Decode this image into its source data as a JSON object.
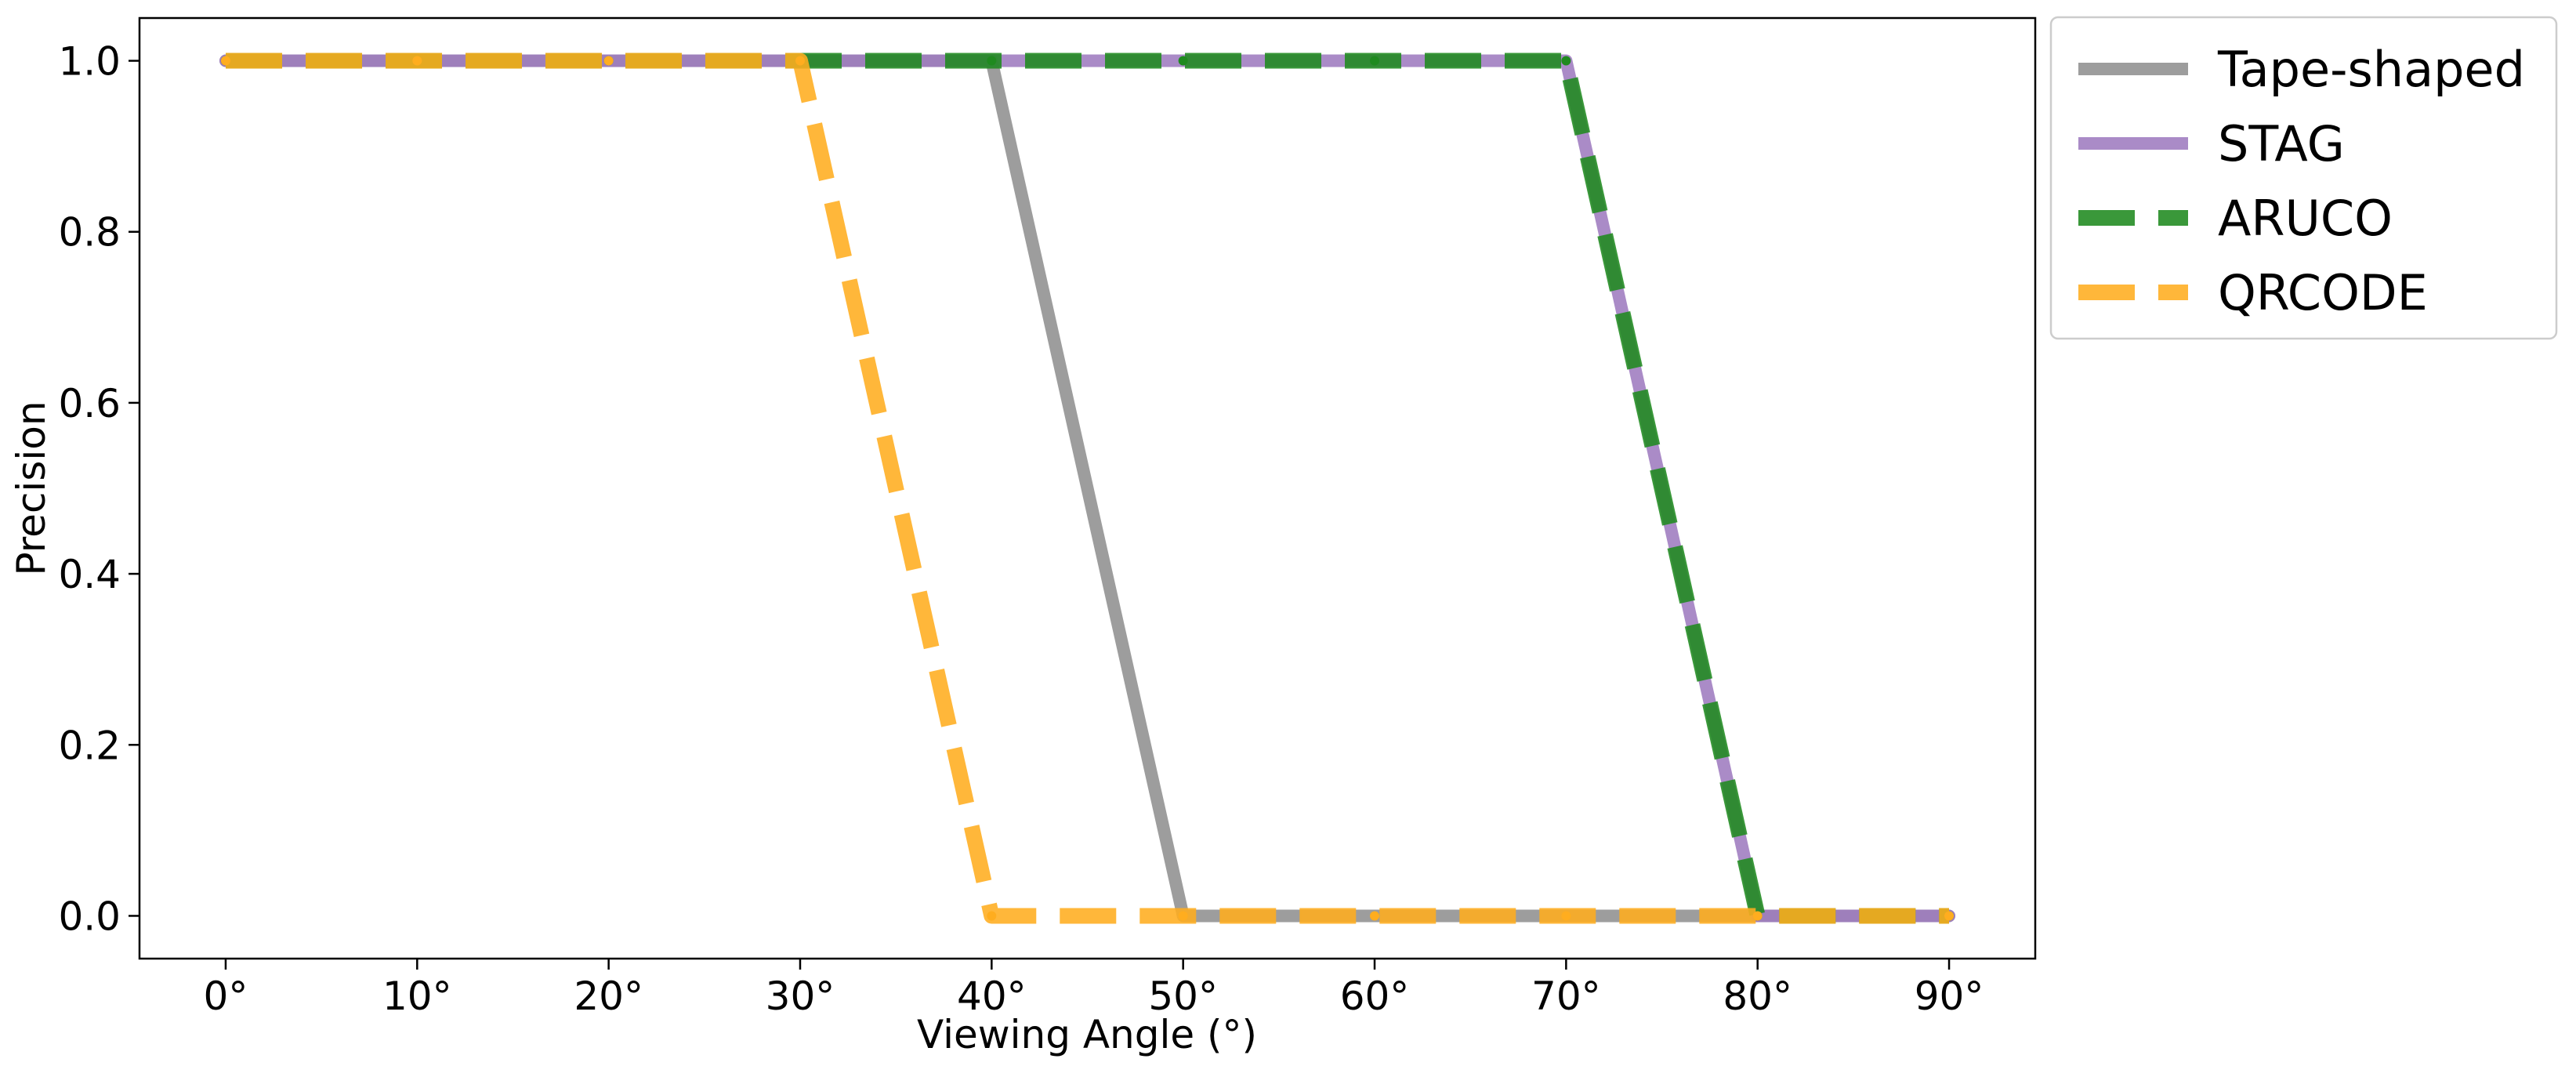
{
  "chart_data": {
    "type": "line",
    "title": "",
    "xlabel": "Viewing Angle (°)",
    "ylabel": "Precision",
    "x": [
      0,
      10,
      20,
      30,
      40,
      50,
      60,
      70,
      80,
      90
    ],
    "x_ticks": [
      "0°",
      "10°",
      "20°",
      "30°",
      "40°",
      "50°",
      "60°",
      "70°",
      "80°",
      "90°"
    ],
    "y_ticks": [
      "0.0",
      "0.2",
      "0.4",
      "0.6",
      "0.8",
      "1.0"
    ],
    "xlim": [
      -4.5,
      94.5
    ],
    "ylim": [
      -0.05,
      1.05
    ],
    "grid": false,
    "legend_position": "outside top-right",
    "series": [
      {
        "name": "Tape-shaped",
        "values": [
          1.0,
          1.0,
          1.0,
          1.0,
          1.0,
          0.0,
          0.0,
          0.0,
          0.0,
          0.0
        ],
        "color": "#8f8f8f",
        "style": "solid"
      },
      {
        "name": "STAG",
        "values": [
          1.0,
          1.0,
          1.0,
          1.0,
          1.0,
          1.0,
          1.0,
          1.0,
          0.0,
          0.0
        ],
        "color": "#9e7bbf",
        "style": "solid"
      },
      {
        "name": "ARUCO",
        "values": [
          1.0,
          1.0,
          1.0,
          1.0,
          1.0,
          1.0,
          1.0,
          1.0,
          0.0,
          0.0
        ],
        "color": "#1f8a1f",
        "style": "dashed"
      },
      {
        "name": "QRCODE",
        "values": [
          1.0,
          1.0,
          1.0,
          1.0,
          0.0,
          0.0,
          0.0,
          0.0,
          0.0,
          0.0
        ],
        "color": "#ffad1f",
        "style": "dashed"
      }
    ]
  }
}
